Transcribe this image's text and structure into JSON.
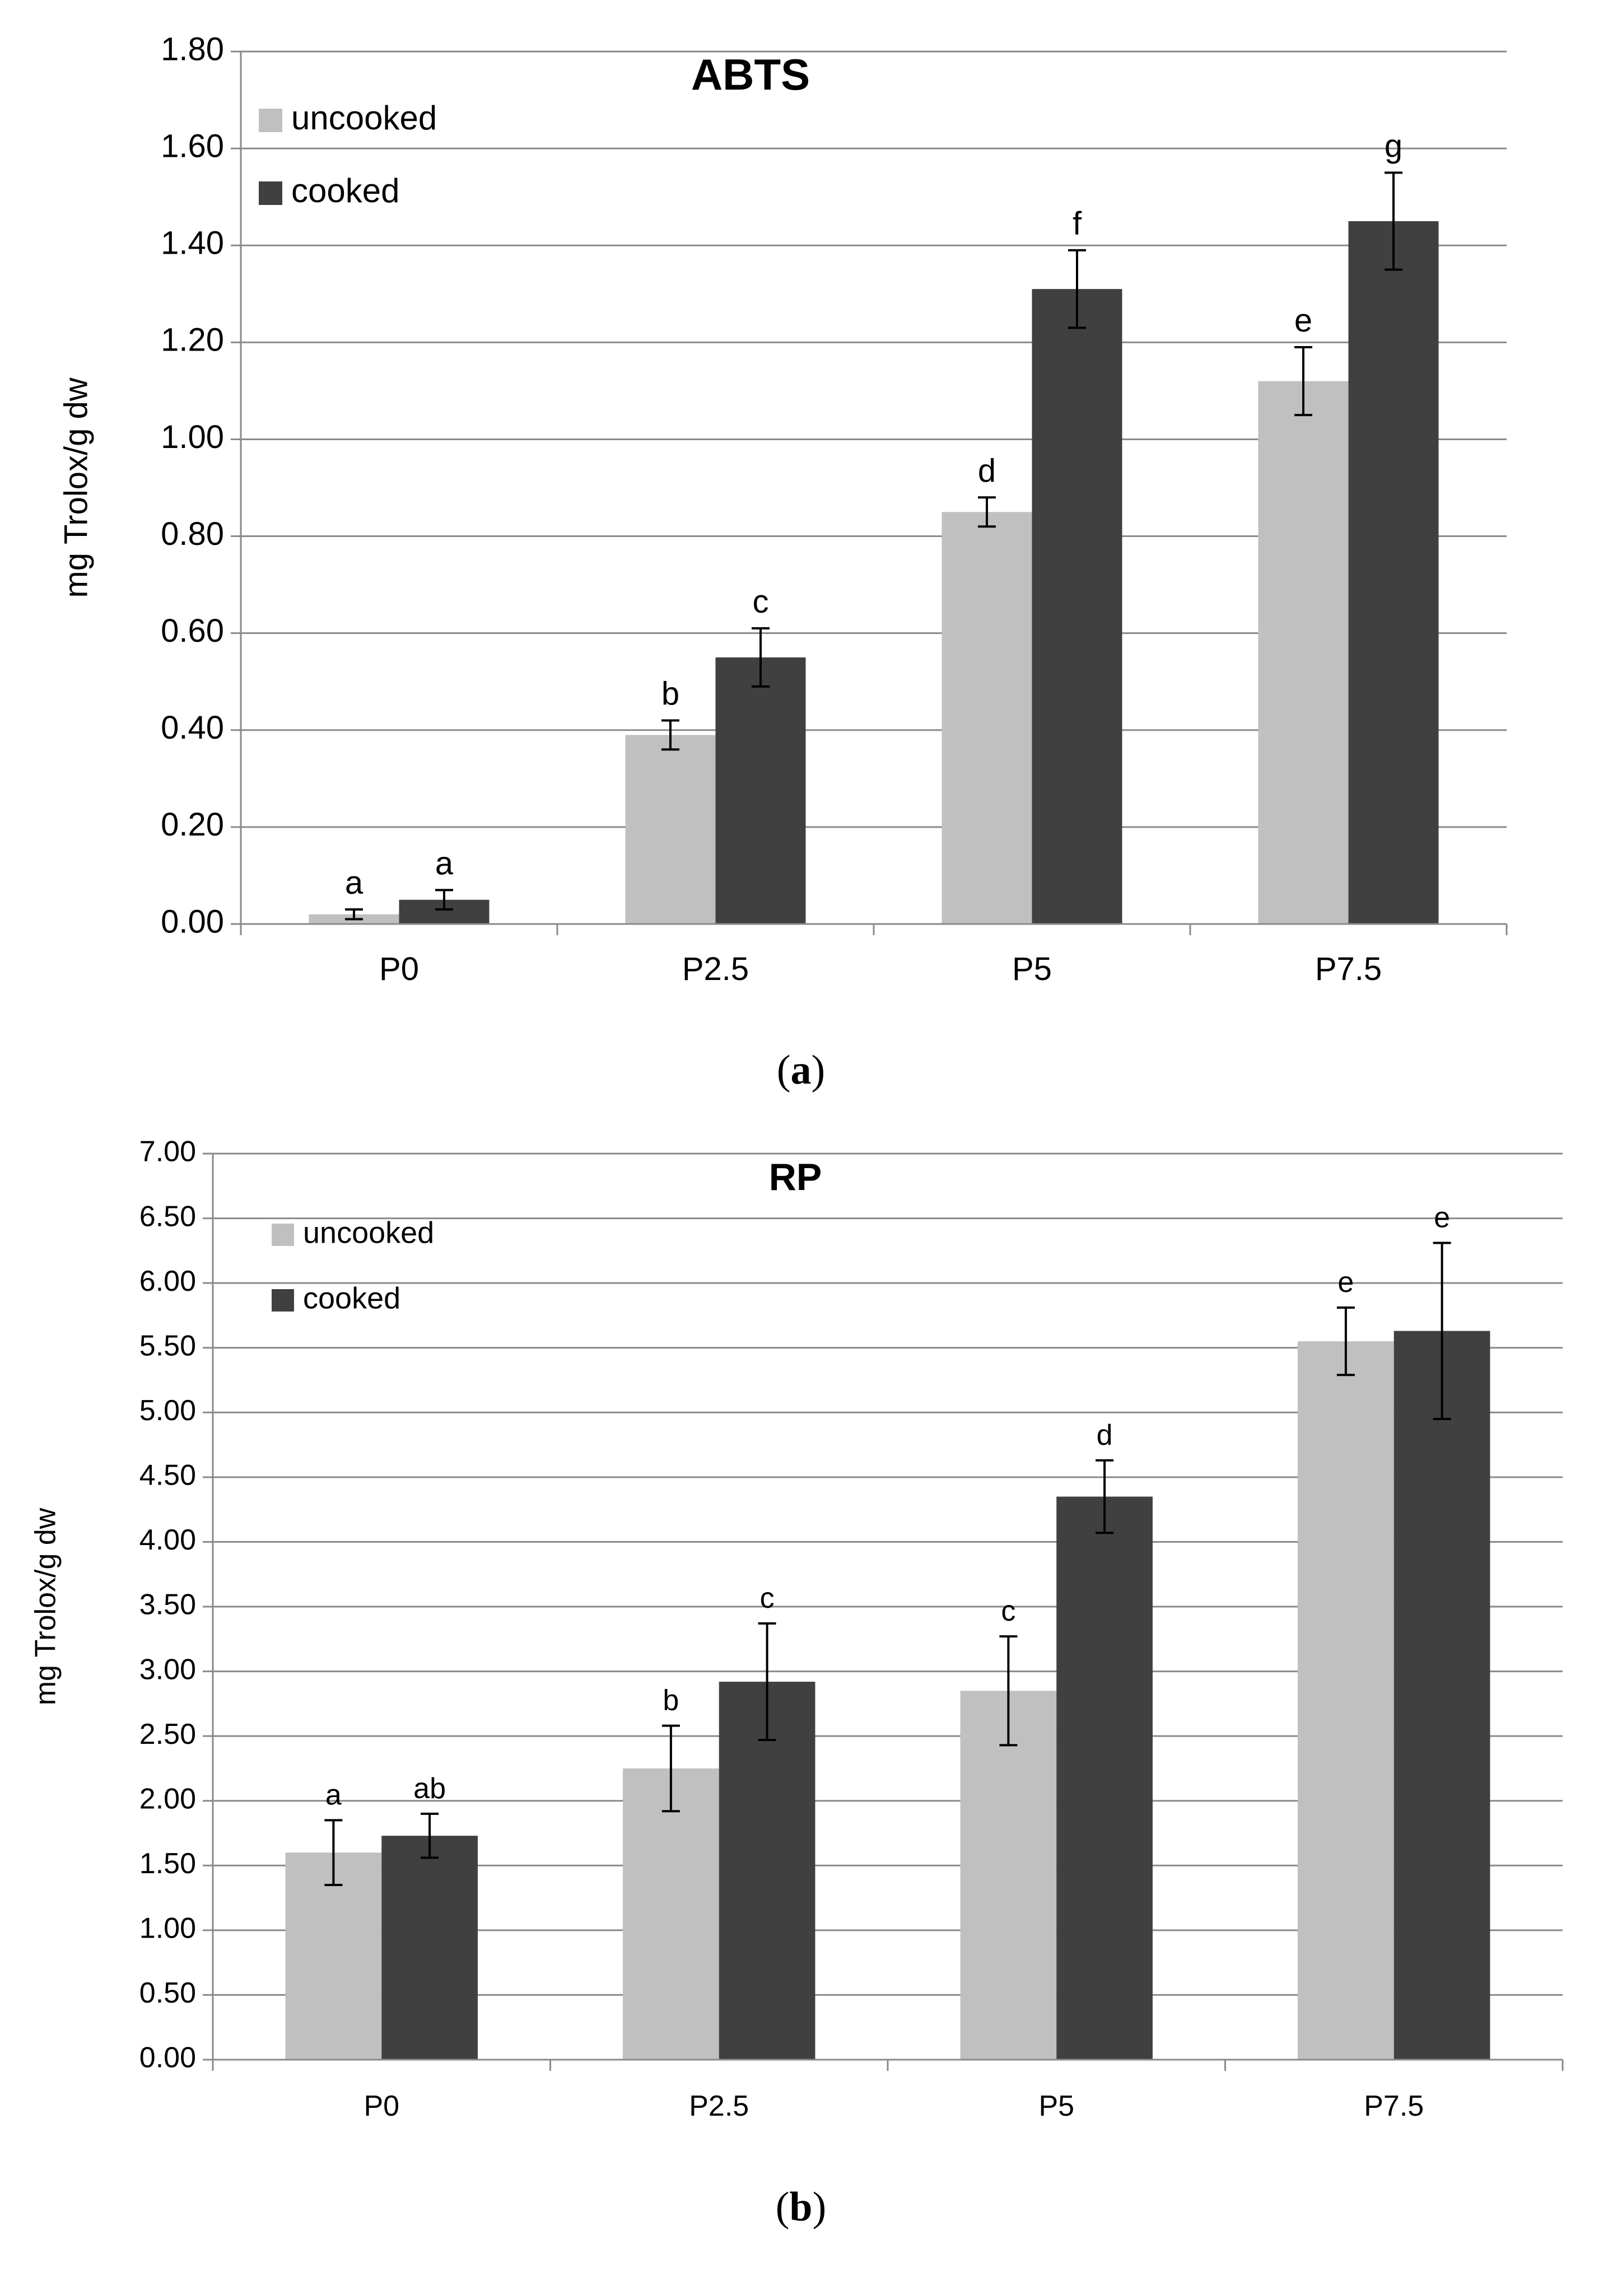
{
  "chart_data": [
    {
      "type": "bar",
      "title": "ABTS",
      "caption_letter": "a",
      "xlabel": "",
      "ylabel": "mg Trolox/g dw",
      "ylim": [
        0,
        1.8
      ],
      "ytick_step": 0.2,
      "ytick_decimals": 2,
      "grid": true,
      "legend_position": "top-left",
      "categories": [
        "P0",
        "P2.5",
        "P5",
        "P7.5"
      ],
      "series": [
        {
          "name": "uncooked",
          "color": "#c0c0c0",
          "values": [
            0.02,
            0.39,
            0.85,
            1.12
          ],
          "errors": [
            0.01,
            0.03,
            0.03,
            0.07
          ],
          "letters": [
            "a",
            "b",
            "d",
            "e"
          ]
        },
        {
          "name": "cooked",
          "color": "#404040",
          "values": [
            0.05,
            0.55,
            1.31,
            1.45
          ],
          "errors": [
            0.02,
            0.06,
            0.08,
            0.1
          ],
          "letters": [
            "a",
            "c",
            "f",
            "g"
          ]
        }
      ]
    },
    {
      "type": "bar",
      "title": "RP",
      "caption_letter": "b",
      "xlabel": "",
      "ylabel": "mg Trolox/g dw",
      "ylim": [
        0,
        7
      ],
      "ytick_step": 0.5,
      "ytick_decimals": 2,
      "grid": true,
      "legend_position": "top-left",
      "categories": [
        "P0",
        "P2.5",
        "P5",
        "P7.5"
      ],
      "series": [
        {
          "name": "uncooked",
          "color": "#c0c0c0",
          "values": [
            1.6,
            2.25,
            2.85,
            5.55
          ],
          "errors": [
            0.25,
            0.33,
            0.42,
            0.26
          ],
          "letters": [
            "a",
            "b",
            "c",
            "e"
          ]
        },
        {
          "name": "cooked",
          "color": "#404040",
          "values": [
            1.73,
            2.92,
            4.35,
            5.63
          ],
          "errors": [
            0.17,
            0.45,
            0.28,
            0.68
          ],
          "letters": [
            "ab",
            "c",
            "d",
            "e"
          ]
        }
      ]
    }
  ]
}
